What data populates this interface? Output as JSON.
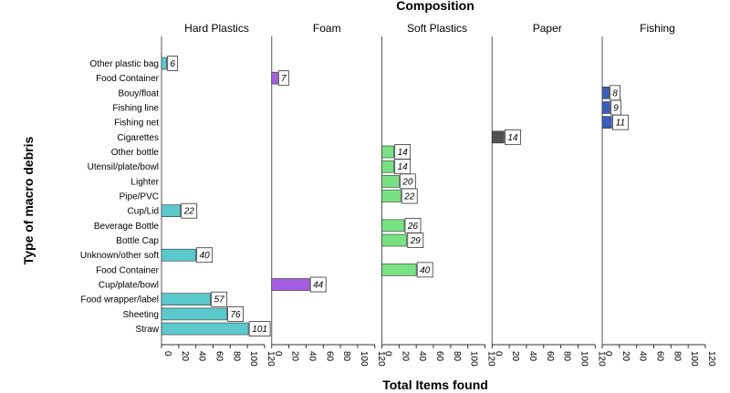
{
  "chart_data": {
    "type": "bar",
    "orientation": "horizontal",
    "title": "Composition",
    "xlabel": "Total Items found",
    "ylabel": "Type of macro debris",
    "xlim": [
      0,
      120
    ],
    "xticks": [
      0,
      20,
      40,
      60,
      80,
      100,
      120
    ],
    "grid": false,
    "categories": [
      "Other plastic bag",
      "Food Container",
      "Bouy/float",
      "Fishing line",
      "Fishing net",
      "Cigarettes",
      "Other bottle",
      "Utensil/plate/bowl",
      "Lighter",
      "Pipe/PVC",
      "Cup/Lid",
      "Beverage Bottle",
      "Bottle Cap",
      "Unknown/other soft",
      "Food Container",
      "Cup/plate/bowl",
      "Food wrapper/label",
      "Sheeting",
      "Straw"
    ],
    "panels": [
      {
        "name": "Hard Plastics",
        "color": "#5cc9cc",
        "bars": [
          {
            "row": 0,
            "value": 6
          },
          {
            "row": 10,
            "value": 22
          },
          {
            "row": 13,
            "value": 40
          },
          {
            "row": 16,
            "value": 57
          },
          {
            "row": 17,
            "value": 76
          },
          {
            "row": 18,
            "value": 101
          }
        ]
      },
      {
        "name": "Foam",
        "color": "#a45ee5",
        "bars": [
          {
            "row": 1,
            "value": 7
          },
          {
            "row": 15,
            "value": 44
          }
        ]
      },
      {
        "name": "Soft Plastics",
        "color": "#78e283",
        "bars": [
          {
            "row": 6,
            "value": 14
          },
          {
            "row": 7,
            "value": 14
          },
          {
            "row": 8,
            "value": 20
          },
          {
            "row": 9,
            "value": 22
          },
          {
            "row": 11,
            "value": 26
          },
          {
            "row": 12,
            "value": 29
          },
          {
            "row": 14,
            "value": 40
          }
        ]
      },
      {
        "name": "Paper",
        "color": "#525252",
        "bars": [
          {
            "row": 5,
            "value": 14
          }
        ]
      },
      {
        "name": "Fishing",
        "color": "#3b5dbe",
        "bars": [
          {
            "row": 2,
            "value": 8
          },
          {
            "row": 3,
            "value": 9
          },
          {
            "row": 4,
            "value": 11
          }
        ]
      }
    ]
  }
}
